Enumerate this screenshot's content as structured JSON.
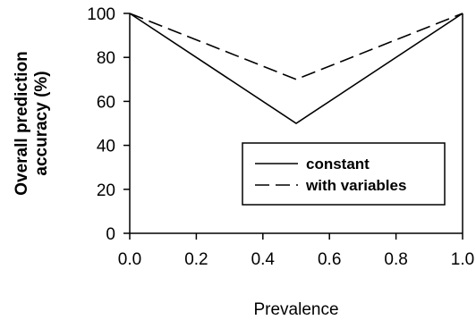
{
  "chart_data": {
    "type": "line",
    "title": "",
    "xlabel": "Prevalence",
    "ylabel_lines": [
      "Overall prediction",
      "accuracy (%)"
    ],
    "xlim": [
      0,
      1
    ],
    "ylim": [
      0,
      100
    ],
    "x_ticks": [
      "0.0",
      "0.2",
      "0.4",
      "0.6",
      "0.8",
      "1.0"
    ],
    "y_ticks": [
      "0",
      "20",
      "40",
      "60",
      "80",
      "100"
    ],
    "grid": false,
    "legend_position": "lower-right",
    "series": [
      {
        "name": "constant",
        "style": "solid",
        "color": "#000000",
        "x": [
          0.0,
          0.5,
          1.0
        ],
        "y": [
          100,
          50,
          100
        ]
      },
      {
        "name": "with variables",
        "style": "dashed",
        "color": "#000000",
        "x": [
          0.0,
          0.5,
          1.0
        ],
        "y": [
          100,
          70,
          100
        ]
      }
    ]
  }
}
